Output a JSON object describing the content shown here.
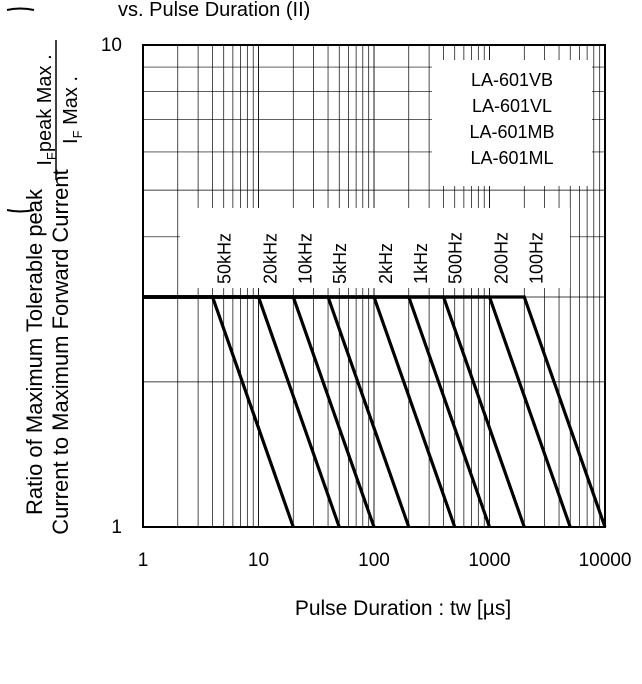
{
  "chart_data": {
    "type": "line",
    "title": "vs. Pulse Duration (II)",
    "xlabel": "Pulse Duration : tw [µs]",
    "ylabel_line1": "Ratio of Maximum Tolerable peak",
    "ylabel_line2": "Current to Maximum Forward Current",
    "ylabel_fraction": {
      "numerator_sym": "I",
      "numerator_sub": "F",
      "numerator_text": "peak Max .",
      "denominator_sym": "I",
      "denominator_sub": "F",
      "denominator_text": " Max ."
    },
    "x_scale": "log",
    "y_scale": "log",
    "xlim": [
      1,
      10000
    ],
    "ylim": [
      1,
      10
    ],
    "x_ticks": [
      "1",
      "10",
      "100",
      "1000",
      "10000"
    ],
    "y_ticks": [
      "10",
      "1"
    ],
    "grid": true,
    "legend": [
      "LA-601VB",
      "LA-601VL",
      "LA-601MB",
      "LA-601ML"
    ],
    "legend_position": "top-right",
    "plateau": {
      "y": 3,
      "x_end": 2000
    },
    "series": [
      {
        "name": "50kHz",
        "points": [
          [
            1,
            3
          ],
          [
            4,
            3
          ],
          [
            20,
            1
          ]
        ]
      },
      {
        "name": "20kHz",
        "points": [
          [
            1,
            3
          ],
          [
            10,
            3
          ],
          [
            50,
            1
          ]
        ]
      },
      {
        "name": "10kHz",
        "points": [
          [
            1,
            3
          ],
          [
            20,
            3
          ],
          [
            100,
            1
          ]
        ]
      },
      {
        "name": "5kHz",
        "points": [
          [
            1,
            3
          ],
          [
            40,
            3
          ],
          [
            200,
            1
          ]
        ]
      },
      {
        "name": "2kHz",
        "points": [
          [
            1,
            3
          ],
          [
            100,
            3
          ],
          [
            500,
            1
          ]
        ]
      },
      {
        "name": "1kHz",
        "points": [
          [
            1,
            3
          ],
          [
            200,
            3
          ],
          [
            1000,
            1
          ]
        ]
      },
      {
        "name": "500Hz",
        "points": [
          [
            1,
            3
          ],
          [
            400,
            3
          ],
          [
            2000,
            1
          ]
        ]
      },
      {
        "name": "200Hz",
        "points": [
          [
            1,
            3
          ],
          [
            1000,
            3
          ],
          [
            5000,
            1
          ]
        ]
      },
      {
        "name": "100Hz",
        "points": [
          [
            1,
            3
          ],
          [
            2000,
            3
          ],
          [
            10000,
            1
          ]
        ]
      }
    ]
  }
}
